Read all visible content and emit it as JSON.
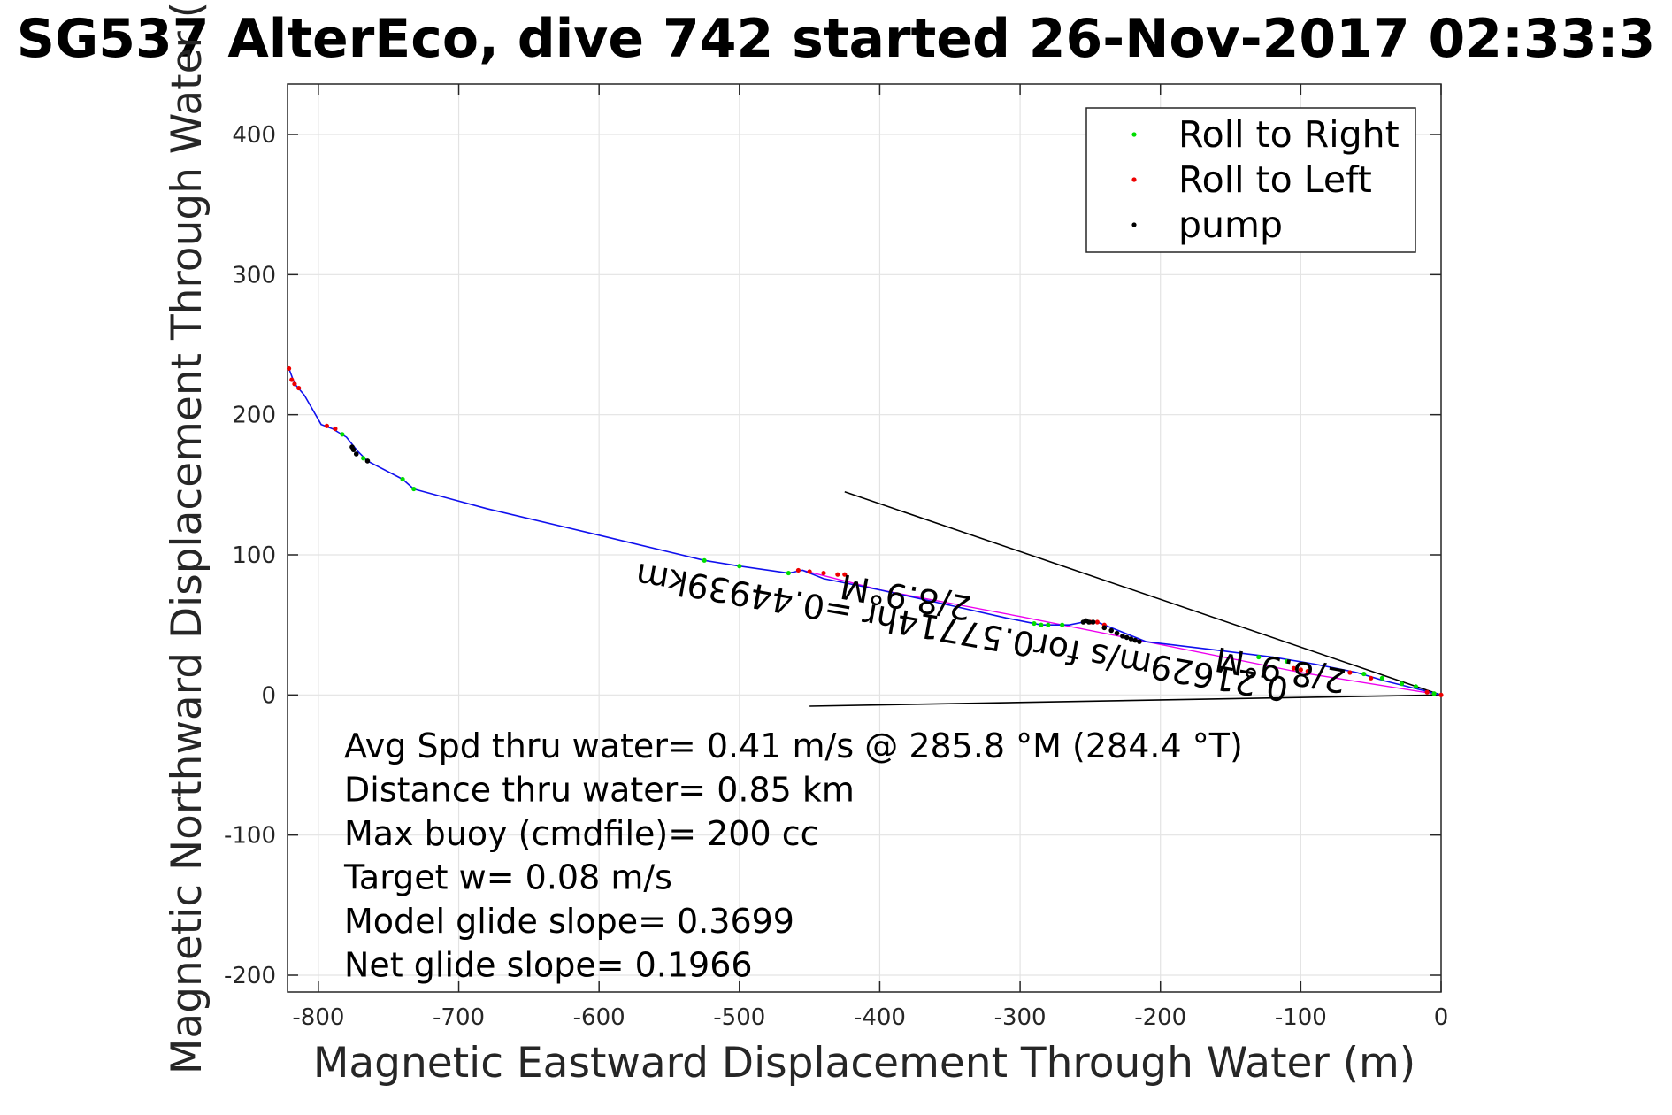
{
  "chart_data": {
    "type": "line",
    "title": "SG537 AlterEco, dive 742 started 26-Nov-2017 02:33:3",
    "xlabel": "Magnetic Eastward Displacement Through Water (m)",
    "ylabel": "Magnetic Northward Displacement Through Water (",
    "xlim": [
      -822,
      0
    ],
    "ylim": [
      -212,
      436
    ],
    "xticks": [
      -800,
      -700,
      -600,
      -500,
      -400,
      -300,
      -200,
      -100,
      0
    ],
    "yticks": [
      -200,
      -100,
      0,
      100,
      200,
      300,
      400
    ],
    "grid": true,
    "legend": {
      "placement": "top-right",
      "entries": [
        {
          "label": "Roll to Right",
          "color": "#00dd00"
        },
        {
          "label": "Roll to Left",
          "color": "#ee0000"
        },
        {
          "label": "pump",
          "color": "#000000"
        }
      ]
    },
    "track": {
      "color": "#1010ee",
      "x": [
        0,
        -20,
        -40,
        -60,
        -90,
        -120,
        -160,
        -210,
        -230,
        -245,
        -255,
        -265,
        -285,
        -310,
        -350,
        -400,
        -440,
        -455,
        -465,
        -500,
        -525,
        -600,
        -680,
        -732,
        -740,
        -765,
        -772,
        -780,
        -790,
        -798,
        -810,
        -816,
        -818,
        -821
      ],
      "y": [
        0,
        5,
        10,
        16,
        22,
        27,
        32,
        38,
        46,
        52,
        52,
        50,
        50,
        55,
        64,
        75,
        83,
        89,
        87,
        92,
        96,
        114,
        133,
        147,
        154,
        167,
        174,
        184,
        190,
        193,
        214,
        221,
        225,
        233
      ]
    },
    "secondary_track": {
      "color": "#ee00ee",
      "x": [
        0,
        -100,
        -200,
        -300,
        -400,
        -455
      ],
      "y": [
        0,
        16,
        36,
        56,
        75,
        89
      ]
    },
    "roll_right": {
      "x": [
        -5,
        -18,
        -28,
        -42,
        -55,
        -110,
        -130,
        -270,
        -280,
        -285,
        -290,
        -465,
        -500,
        -525,
        -740,
        -732,
        -768,
        -783
      ],
      "y": [
        1,
        6,
        8,
        12,
        15,
        24,
        27,
        50,
        50,
        50,
        51,
        87,
        92,
        96,
        154,
        147,
        169,
        186
      ]
    },
    "roll_left": {
      "x": [
        0,
        -10,
        -50,
        -65,
        -95,
        -100,
        -105,
        -240,
        -245,
        -250,
        -425,
        -430,
        -440,
        -450,
        -458,
        -788,
        -794,
        -814,
        -817,
        -819,
        -821
      ],
      "y": [
        0,
        2,
        12,
        16,
        17,
        18,
        19,
        50,
        52,
        52,
        86,
        86,
        87,
        88,
        89,
        190,
        192,
        219,
        222,
        225,
        233
      ]
    },
    "pump": {
      "x": [
        -215,
        -218,
        -221,
        -224,
        -227,
        -231,
        -235,
        -240,
        -248,
        -251,
        -253,
        -255,
        -776,
        -775,
        -773,
        -765
      ],
      "y": [
        38,
        39,
        40,
        41,
        42,
        44,
        46,
        48,
        52,
        52,
        53,
        52,
        177,
        175,
        172,
        167
      ]
    },
    "reference_lines": [
      {
        "x": [
          0,
          -425
        ],
        "y": [
          0,
          145
        ],
        "color": "#000000"
      },
      {
        "x": [
          0,
          -450
        ],
        "y": [
          0,
          -8
        ],
        "color": "#000000"
      }
    ],
    "track_labels": [
      {
        "text": "2/8.9°M",
        "x": -113,
        "y": 26,
        "rotation": 190
      },
      {
        "text": "0.21629m/s for0.57714hr =0.44939km",
        "x": -340,
        "y": 53,
        "rotation": 190
      },
      {
        "text": "2/8.9°M",
        "x": -380,
        "y": 78,
        "rotation": 190
      }
    ],
    "annotations": [
      "Avg Spd thru water=  0.41 m/s @ 285.8 °M (284.4 °T)",
      "Distance thru water=  0.85 km",
      "Max buoy (cmdfile)= 200 cc",
      "Target w= 0.08 m/s",
      "Model glide slope= 0.3699",
      "Net glide slope= 0.1966"
    ]
  }
}
